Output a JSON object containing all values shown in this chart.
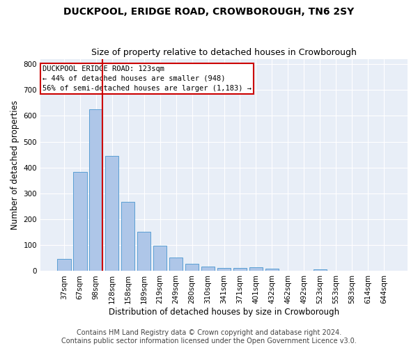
{
  "title": "DUCKPOOL, ERIDGE ROAD, CROWBOROUGH, TN6 2SY",
  "subtitle": "Size of property relative to detached houses in Crowborough",
  "xlabel": "Distribution of detached houses by size in Crowborough",
  "ylabel": "Number of detached properties",
  "footer_line1": "Contains HM Land Registry data © Crown copyright and database right 2024.",
  "footer_line2": "Contains public sector information licensed under the Open Government Licence v3.0.",
  "bar_labels": [
    "37sqm",
    "67sqm",
    "98sqm",
    "128sqm",
    "158sqm",
    "189sqm",
    "219sqm",
    "249sqm",
    "280sqm",
    "310sqm",
    "341sqm",
    "371sqm",
    "401sqm",
    "432sqm",
    "462sqm",
    "492sqm",
    "523sqm",
    "553sqm",
    "583sqm",
    "614sqm",
    "644sqm"
  ],
  "bar_values": [
    47,
    384,
    624,
    444,
    268,
    153,
    98,
    52,
    29,
    17,
    12,
    11,
    14,
    8,
    0,
    0,
    7,
    0,
    0,
    0,
    0
  ],
  "bar_color": "#aec6e8",
  "bar_edgecolor": "#5a9fd4",
  "background_color": "#e8eef7",
  "grid_color": "#ffffff",
  "annotation_text_line1": "DUCKPOOL ERIDGE ROAD: 123sqm",
  "annotation_text_line2": "← 44% of detached houses are smaller (948)",
  "annotation_text_line3": "56% of semi-detached houses are larger (1,183) →",
  "vline_color": "#cc0000",
  "annotation_box_edgecolor": "#cc0000",
  "ylim": [
    0,
    820
  ],
  "yticks": [
    0,
    100,
    200,
    300,
    400,
    500,
    600,
    700,
    800
  ],
  "title_fontsize": 10,
  "subtitle_fontsize": 9,
  "axis_label_fontsize": 8.5,
  "tick_fontsize": 7.5,
  "annotation_fontsize": 7.5,
  "footer_fontsize": 7
}
